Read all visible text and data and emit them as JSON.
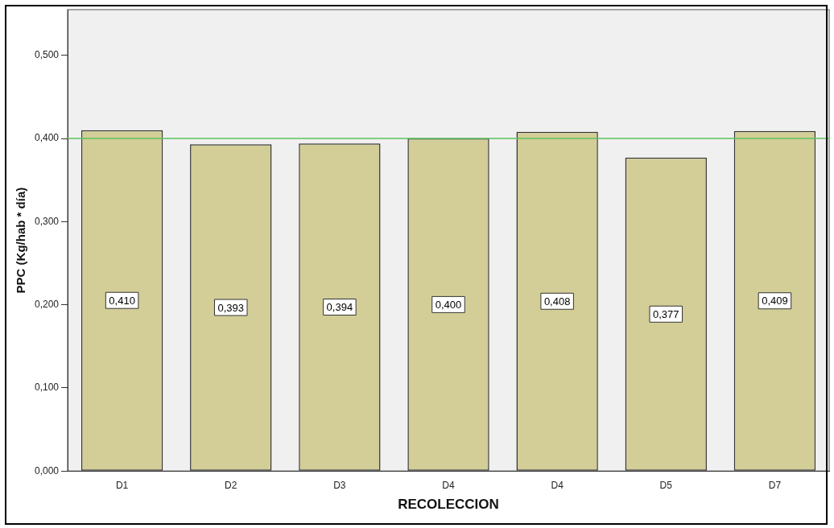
{
  "chart_data": {
    "type": "bar",
    "xlabel": "RECOLECCION",
    "ylabel": "PPC (Kg/hab * día)",
    "categories": [
      "D1",
      "D2",
      "D3",
      "D4",
      "D4",
      "D5",
      "D7"
    ],
    "values": [
      0.41,
      0.393,
      0.394,
      0.4,
      0.408,
      0.377,
      0.409
    ],
    "value_labels": [
      "0,410",
      "0,393",
      "0,394",
      "0,400",
      "0,408",
      "0,377",
      "0,409"
    ],
    "color": "#d3ce97",
    "ylim": [
      0,
      0.555
    ],
    "yticks": [
      {
        "value": 0,
        "label": "0,000"
      },
      {
        "value": 0.1,
        "label": "0,100"
      },
      {
        "value": 0.2,
        "label": "0,200"
      },
      {
        "value": 0.3,
        "label": "0,300"
      },
      {
        "value": 0.4,
        "label": "0,400"
      },
      {
        "value": 0.5,
        "label": "0,500"
      }
    ],
    "ref_lines": [
      {
        "axis": "y",
        "value": 0.4,
        "color": "#5ec35e"
      }
    ],
    "grid": false,
    "legend": false
  }
}
